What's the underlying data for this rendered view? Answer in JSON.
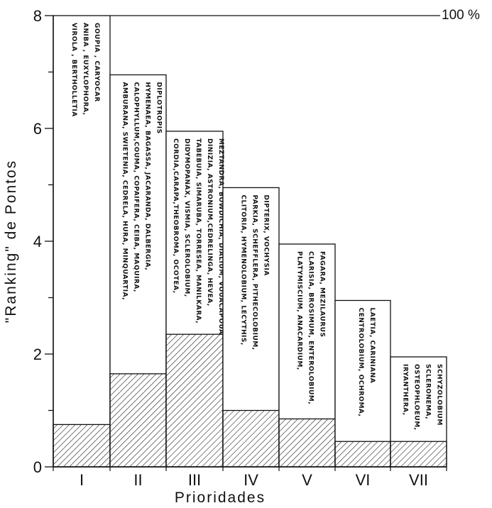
{
  "chart_data": {
    "type": "bar",
    "xlabel": "Prioridades",
    "ylabel": "\"Ranking\" de Pontos",
    "ylim": [
      0,
      8
    ],
    "yticks": [
      0,
      2,
      4,
      6,
      8
    ],
    "reference_line": {
      "value": 8,
      "label": "100 %"
    },
    "categories": [
      "I",
      "II",
      "III",
      "IV",
      "V",
      "VI",
      "VII"
    ],
    "series": [
      {
        "values": [
          0.75,
          1.65,
          2.35,
          1.0,
          0.85,
          0.45,
          0.45
        ]
      },
      {
        "values": [
          8.0,
          6.95,
          5.95,
          4.95,
          3.95,
          2.95,
          1.95
        ]
      }
    ],
    "annotations": [
      [
        "VIROLA , BERTHOLLETIA",
        "ANIBA , EUXYLOPHORA,",
        "GOUPIA , CARYOCAR"
      ],
      [
        "AMBURANA, SWIETENIA, CEDRELA, HURA, MINQUARTIA,",
        "CALOPHYLLUM,COUMA, COPAIFERA, CEIBA, MAQUIRA,",
        "HYMENAEA, BAGASSA, JACARANDA, DALBERGIA,",
        "DIPLOTROPIS"
      ],
      [
        "CORDIA,CARAPA,THEOBROMA, OCOTEA,",
        "DIDYMOPANAX, VISMIA, SCLEROLOBIUM,",
        "TABEBUIA, SIMARUBA, TORRESEA, MANILKARA,",
        "DINIZIA, ASTRONIUM,CEDRELINGA, HEVEA,",
        "MEZTANDRA, BOWDICHIA, DIALIUM, VOUACAPOUA"
      ],
      [
        "CLITORIA, HYMENOLOBIUM, LECYTHIS,",
        "PARKIA, SCHEFFLERA, PITHECOLOBIUM,",
        "DIPTERIX, VOCHYSIA"
      ],
      [
        "PLATYMISCIUM, ANACARDIUM,",
        "CLARISIA, BROSIMUM, ENTEROLOBIUM,",
        "FAGARA, MEZILAURUS"
      ],
      [
        "CENTROLOBIUM, OCHROMA,",
        "LAETIA, CARINIANA"
      ],
      [
        "IRYANTHERA,",
        "OSTEOPHLOEUM,",
        "SCLERONEMA,",
        "SCHYZOLOBIUM"
      ]
    ],
    "colors": {
      "ink": "#111111",
      "fill": "#ffffff"
    },
    "grid": false,
    "legend": "none"
  }
}
